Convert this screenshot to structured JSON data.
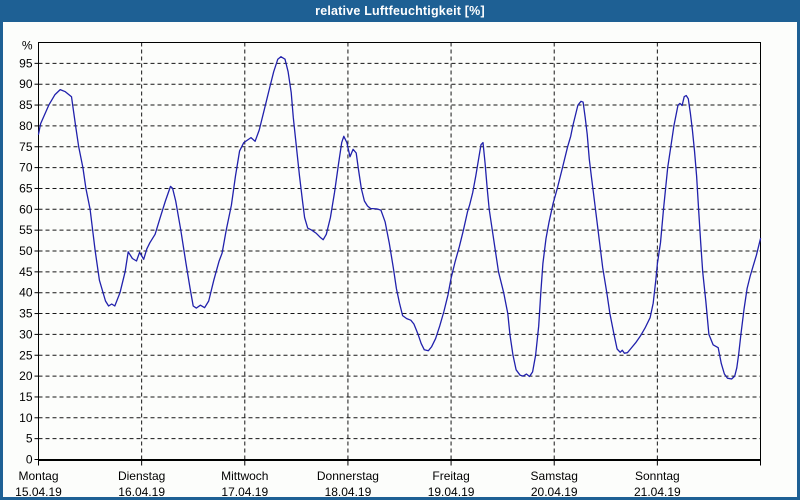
{
  "window": {
    "title": "relative Luftfeuchtigkeit [%]"
  },
  "colors": {
    "titlebar": "#1E6094",
    "frame": "#1E6094",
    "background": "#FCFDFB",
    "grid": "#161616",
    "axis": "#000000",
    "line": "#2121AC"
  },
  "chart_data": {
    "type": "line",
    "title": "relative Luftfeuchtigkeit [%]",
    "ylabel": "",
    "y_unit": "%",
    "ylim": [
      0,
      100
    ],
    "y_ticks": [
      0,
      5,
      10,
      15,
      20,
      25,
      30,
      35,
      40,
      45,
      50,
      55,
      60,
      65,
      70,
      75,
      80,
      85,
      90,
      95
    ],
    "xlim_days": [
      0,
      7
    ],
    "grid": "dashed",
    "legend": "none",
    "x_days": [
      {
        "label": "Montag",
        "date": "15.04.19"
      },
      {
        "label": "Dienstag",
        "date": "16.04.19"
      },
      {
        "label": "Mittwoch",
        "date": "17.04.19"
      },
      {
        "label": "Donnerstag",
        "date": "18.04.19"
      },
      {
        "label": "Freitag",
        "date": "19.04.19"
      },
      {
        "label": "Samstag",
        "date": "20.04.19"
      },
      {
        "label": "Sonntag",
        "date": "21.04.19"
      }
    ],
    "series": [
      {
        "name": "relative Luftfeuchtigkeit",
        "points": [
          [
            0.0,
            78
          ],
          [
            0.02,
            80.5
          ],
          [
            0.1,
            85
          ],
          [
            0.16,
            87.5
          ],
          [
            0.21,
            88.7
          ],
          [
            0.26,
            88.2
          ],
          [
            0.32,
            87
          ],
          [
            0.36,
            80
          ],
          [
            0.39,
            75
          ],
          [
            0.43,
            70
          ],
          [
            0.46,
            65
          ],
          [
            0.5,
            60
          ],
          [
            0.55,
            50
          ],
          [
            0.59,
            43
          ],
          [
            0.65,
            38
          ],
          [
            0.68,
            36.8
          ],
          [
            0.71,
            37.3
          ],
          [
            0.74,
            36.8
          ],
          [
            0.79,
            40
          ],
          [
            0.84,
            45
          ],
          [
            0.87,
            49.8
          ],
          [
            0.91,
            48.2
          ],
          [
            0.95,
            47.6
          ],
          [
            0.98,
            49.7
          ],
          [
            1.02,
            48
          ],
          [
            1.05,
            50.5
          ],
          [
            1.08,
            52
          ],
          [
            1.13,
            54
          ],
          [
            1.18,
            58
          ],
          [
            1.23,
            62
          ],
          [
            1.28,
            65.5
          ],
          [
            1.3,
            65
          ],
          [
            1.33,
            62
          ],
          [
            1.38,
            55
          ],
          [
            1.43,
            47
          ],
          [
            1.47,
            41
          ],
          [
            1.5,
            36.8
          ],
          [
            1.53,
            36.3
          ],
          [
            1.57,
            37
          ],
          [
            1.61,
            36.4
          ],
          [
            1.65,
            38
          ],
          [
            1.7,
            43
          ],
          [
            1.75,
            47.5
          ],
          [
            1.78,
            49.5
          ],
          [
            1.82,
            55
          ],
          [
            1.87,
            61
          ],
          [
            1.91,
            68
          ],
          [
            1.95,
            74
          ],
          [
            1.99,
            76
          ],
          [
            2.06,
            77.2
          ],
          [
            2.1,
            76.3
          ],
          [
            2.14,
            79
          ],
          [
            2.19,
            84
          ],
          [
            2.24,
            89
          ],
          [
            2.28,
            93
          ],
          [
            2.32,
            96
          ],
          [
            2.35,
            96.6
          ],
          [
            2.39,
            96
          ],
          [
            2.42,
            93
          ],
          [
            2.45,
            88
          ],
          [
            2.47,
            82
          ],
          [
            2.5,
            75
          ],
          [
            2.53,
            68
          ],
          [
            2.56,
            62
          ],
          [
            2.58,
            58
          ],
          [
            2.61,
            55.5
          ],
          [
            2.65,
            55
          ],
          [
            2.69,
            54.3
          ],
          [
            2.73,
            53.3
          ],
          [
            2.76,
            52.7
          ],
          [
            2.79,
            54
          ],
          [
            2.83,
            58
          ],
          [
            2.87,
            64
          ],
          [
            2.91,
            71
          ],
          [
            2.94,
            76
          ],
          [
            2.96,
            77.5
          ],
          [
            2.99,
            76
          ],
          [
            3.02,
            72.6
          ],
          [
            3.05,
            74.4
          ],
          [
            3.08,
            73.5
          ],
          [
            3.1,
            70
          ],
          [
            3.13,
            65
          ],
          [
            3.16,
            62
          ],
          [
            3.19,
            60.8
          ],
          [
            3.22,
            60.2
          ],
          [
            3.28,
            60.1
          ],
          [
            3.32,
            59.8
          ],
          [
            3.36,
            57
          ],
          [
            3.4,
            52
          ],
          [
            3.44,
            46
          ],
          [
            3.47,
            41
          ],
          [
            3.5,
            37.5
          ],
          [
            3.53,
            34.5
          ],
          [
            3.57,
            33.8
          ],
          [
            3.61,
            33.4
          ],
          [
            3.64,
            32.5
          ],
          [
            3.68,
            30
          ],
          [
            3.71,
            27.8
          ],
          [
            3.74,
            26.3
          ],
          [
            3.78,
            26.1
          ],
          [
            3.81,
            27
          ],
          [
            3.85,
            29
          ],
          [
            3.89,
            32
          ],
          [
            3.93,
            35.5
          ],
          [
            3.97,
            39.5
          ],
          [
            4.0,
            43.5
          ],
          [
            4.04,
            47.5
          ],
          [
            4.08,
            51
          ],
          [
            4.12,
            55
          ],
          [
            4.16,
            59.5
          ],
          [
            4.18,
            61
          ],
          [
            4.21,
            64
          ],
          [
            4.24,
            68
          ],
          [
            4.27,
            72.5
          ],
          [
            4.29,
            75.5
          ],
          [
            4.31,
            76
          ],
          [
            4.33,
            71
          ],
          [
            4.35,
            65
          ],
          [
            4.37,
            60
          ],
          [
            4.4,
            55
          ],
          [
            4.43,
            50
          ],
          [
            4.46,
            45
          ],
          [
            4.51,
            40
          ],
          [
            4.55,
            35
          ],
          [
            4.57,
            30
          ],
          [
            4.6,
            25
          ],
          [
            4.63,
            21.5
          ],
          [
            4.67,
            20.2
          ],
          [
            4.7,
            20
          ],
          [
            4.73,
            20.5
          ],
          [
            4.76,
            19.9
          ],
          [
            4.79,
            21
          ],
          [
            4.82,
            25
          ],
          [
            4.85,
            32
          ],
          [
            4.87,
            40
          ],
          [
            4.89,
            47
          ],
          [
            4.92,
            53
          ],
          [
            4.95,
            57
          ],
          [
            4.99,
            61.5
          ],
          [
            5.03,
            65
          ],
          [
            5.08,
            70
          ],
          [
            5.13,
            75
          ],
          [
            5.16,
            77.5
          ],
          [
            5.18,
            80
          ],
          [
            5.23,
            85
          ],
          [
            5.26,
            85.9
          ],
          [
            5.28,
            85.7
          ],
          [
            5.3,
            82
          ],
          [
            5.32,
            78
          ],
          [
            5.34,
            72
          ],
          [
            5.36,
            68
          ],
          [
            5.38,
            64
          ],
          [
            5.41,
            58
          ],
          [
            5.44,
            52
          ],
          [
            5.47,
            46
          ],
          [
            5.51,
            40
          ],
          [
            5.54,
            35
          ],
          [
            5.58,
            30
          ],
          [
            5.61,
            26.5
          ],
          [
            5.64,
            25.7
          ],
          [
            5.66,
            26.2
          ],
          [
            5.68,
            25.5
          ],
          [
            5.71,
            25.6
          ],
          [
            5.74,
            26.5
          ],
          [
            5.79,
            28
          ],
          [
            5.84,
            29.8
          ],
          [
            5.88,
            31.5
          ],
          [
            5.93,
            34
          ],
          [
            5.96,
            37.5
          ],
          [
            5.985,
            43
          ],
          [
            6.0,
            47
          ],
          [
            6.03,
            52
          ],
          [
            6.06,
            60
          ],
          [
            6.1,
            70
          ],
          [
            6.13,
            75
          ],
          [
            6.16,
            80
          ],
          [
            6.2,
            85
          ],
          [
            6.22,
            85.4
          ],
          [
            6.24,
            84.9
          ],
          [
            6.26,
            87
          ],
          [
            6.28,
            87.3
          ],
          [
            6.3,
            86.5
          ],
          [
            6.32,
            83
          ],
          [
            6.34,
            79
          ],
          [
            6.36,
            74
          ],
          [
            6.38,
            68
          ],
          [
            6.4,
            60
          ],
          [
            6.42,
            52
          ],
          [
            6.44,
            45
          ],
          [
            6.47,
            38
          ],
          [
            6.5,
            30
          ],
          [
            6.54,
            27.5
          ],
          [
            6.59,
            26.8
          ],
          [
            6.62,
            23
          ],
          [
            6.65,
            20.5
          ],
          [
            6.68,
            19.5
          ],
          [
            6.72,
            19.3
          ],
          [
            6.75,
            20
          ],
          [
            6.77,
            22
          ],
          [
            6.79,
            25.5
          ],
          [
            6.81,
            30
          ],
          [
            6.84,
            36
          ],
          [
            6.87,
            41
          ],
          [
            6.9,
            44
          ],
          [
            6.93,
            46.5
          ],
          [
            6.96,
            49
          ],
          [
            7.0,
            53
          ]
        ]
      }
    ]
  }
}
